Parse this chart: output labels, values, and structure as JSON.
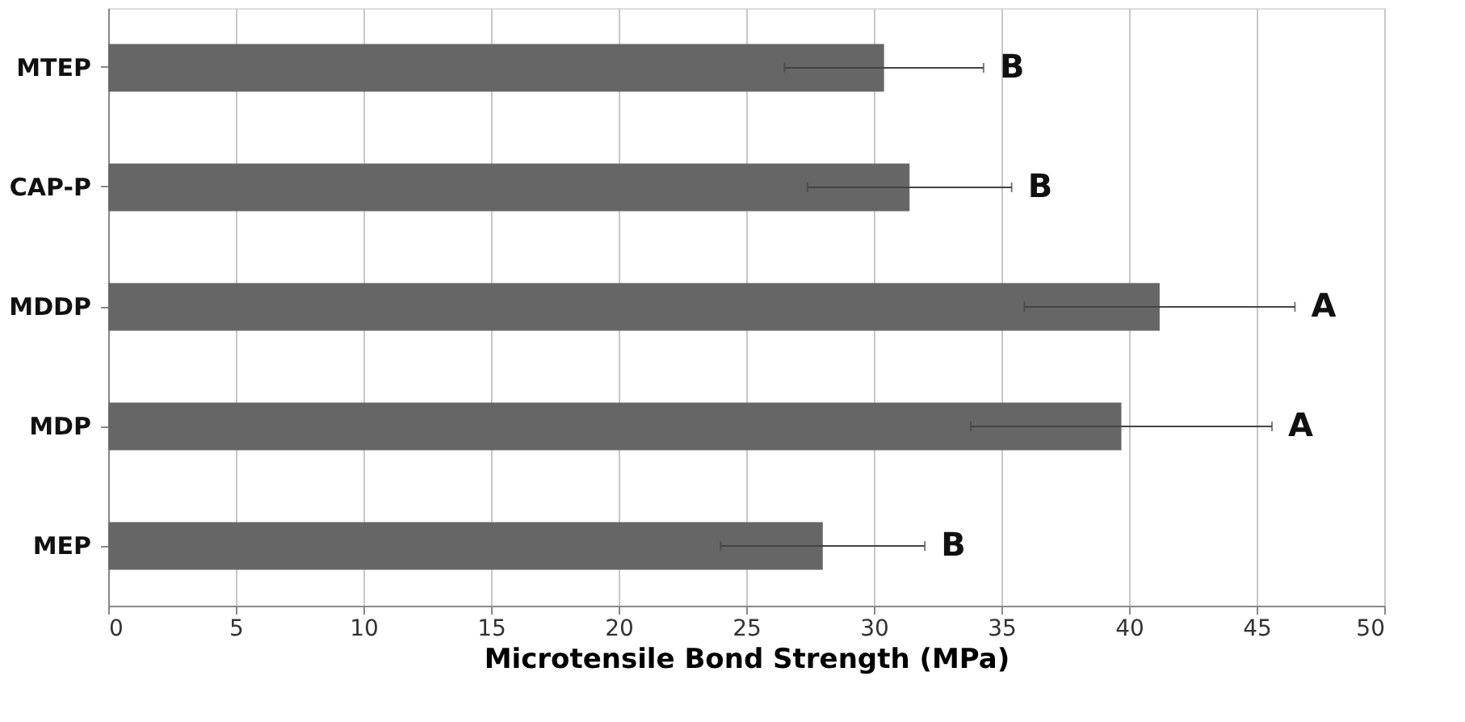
{
  "chart_data": {
    "type": "bar",
    "orientation": "horizontal",
    "xlabel": "Microtensile Bond Strength (MPa)",
    "categories": [
      "MTEP",
      "CAP-P",
      "MDDP",
      "MDP",
      "MEP"
    ],
    "values": [
      30.4,
      31.4,
      41.2,
      39.7,
      28.0
    ],
    "errors": [
      3.9,
      4.0,
      5.3,
      5.9,
      4.0
    ],
    "color": "#666666",
    "xlim": [
      0,
      50
    ],
    "xticks": [
      0,
      5,
      10,
      15,
      20,
      25,
      30,
      35,
      40,
      45,
      50
    ],
    "grid": "x",
    "annotations": [
      "B",
      "B",
      "A",
      "A",
      "B"
    ]
  }
}
